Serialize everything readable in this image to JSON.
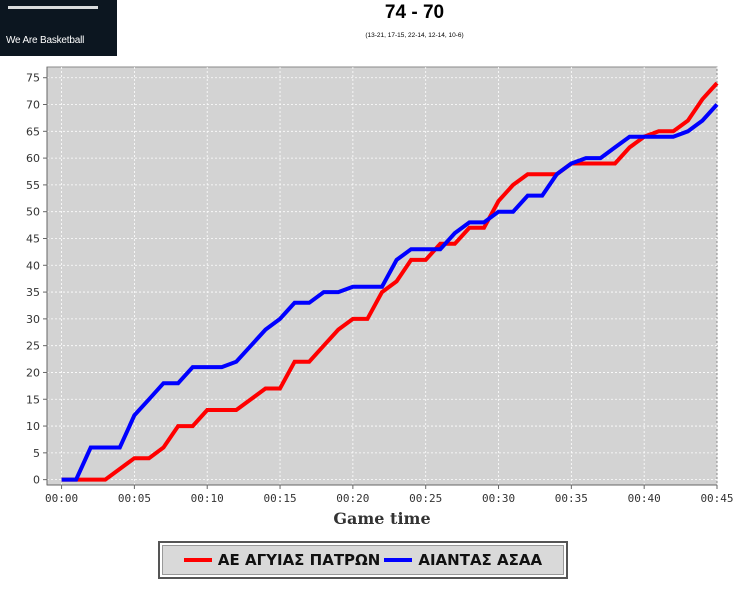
{
  "header": {
    "logo_tagline": "We Are Basketball",
    "score": "74 - 70",
    "periods": "(13-21, 17-15, 22-14, 12-14, 10-6)"
  },
  "colors": {
    "plot_bg": "#d3d3d3",
    "team_a": "#ff0000",
    "team_b": "#0000ff"
  },
  "chart_data": {
    "type": "line",
    "title": "74 - 70",
    "subtitle": "(13-21, 17-15, 22-14, 12-14, 10-6)",
    "xlabel": "Game time",
    "ylabel": "",
    "xlim": [
      -1,
      45
    ],
    "ylim": [
      -1,
      77
    ],
    "grid": true,
    "legend_position": "bottom",
    "x_ticks": [
      "00:00",
      "00:05",
      "00:10",
      "00:15",
      "00:20",
      "00:25",
      "00:30",
      "00:35",
      "00:40",
      "00:45"
    ],
    "y_ticks": [
      0,
      5,
      10,
      15,
      20,
      25,
      30,
      35,
      40,
      45,
      50,
      55,
      60,
      65,
      70,
      75
    ],
    "series": [
      {
        "name": "ΑΕ ΑΓΥΙΑΣ ΠΑΤΡΩΝ",
        "color": "#ff0000",
        "x": [
          0,
          3,
          5,
          6,
          7,
          8,
          9,
          10,
          11,
          12,
          14,
          15,
          16,
          17,
          18,
          19,
          20,
          21,
          22,
          23,
          24,
          25,
          26,
          27,
          28,
          29,
          30,
          31,
          32,
          33,
          34,
          35,
          36,
          37,
          38,
          39,
          40,
          41,
          42,
          43,
          44,
          45
        ],
        "y": [
          0,
          0,
          4,
          4,
          6,
          10,
          10,
          13,
          13,
          13,
          17,
          17,
          22,
          22,
          25,
          28,
          30,
          30,
          35,
          37,
          41,
          41,
          44,
          44,
          47,
          47,
          52,
          55,
          57,
          57,
          57,
          59,
          59,
          59,
          59,
          62,
          64,
          65,
          65,
          67,
          71,
          74
        ]
      },
      {
        "name": "ΑΙΑΝΤΑΣ ΑΣΑΑ",
        "color": "#0000ff",
        "x": [
          0,
          1,
          2,
          4,
          5,
          6,
          7,
          8,
          9,
          10,
          11,
          12,
          13,
          14,
          15,
          16,
          17,
          18,
          19,
          20,
          21,
          22,
          23,
          24,
          25,
          26,
          27,
          28,
          29,
          30,
          31,
          32,
          33,
          34,
          35,
          36,
          37,
          38,
          39,
          40,
          41,
          42,
          43,
          44,
          45
        ],
        "y": [
          0,
          0,
          6,
          6,
          12,
          15,
          18,
          18,
          21,
          21,
          21,
          22,
          25,
          28,
          30,
          33,
          33,
          35,
          35,
          36,
          36,
          36,
          41,
          43,
          43,
          43,
          46,
          48,
          48,
          50,
          50,
          53,
          53,
          57,
          59,
          60,
          60,
          62,
          64,
          64,
          64,
          64,
          65,
          67,
          70
        ]
      }
    ]
  }
}
